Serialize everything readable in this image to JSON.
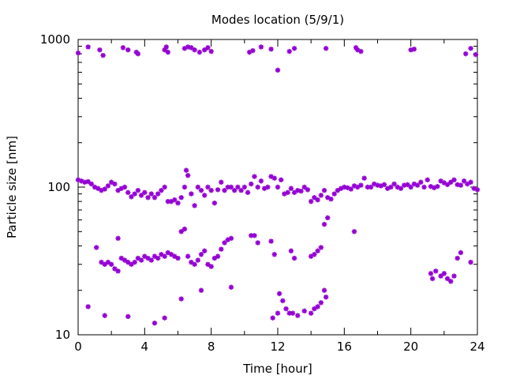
{
  "chart_data": {
    "type": "scatter",
    "title": "Modes location (5/9/1)",
    "xlabel": "Time [hour]",
    "ylabel": "Particle size [nm]",
    "xlim": [
      0,
      24
    ],
    "ylim": [
      10,
      1000
    ],
    "yscale": "log",
    "grid": false,
    "legend": "none",
    "x_ticks": [
      "0",
      "4",
      "8",
      "12",
      "16",
      "20",
      "24"
    ],
    "y_ticks": [
      "10",
      "100",
      "1000"
    ],
    "marker_color": "#9400d3",
    "marker": "star",
    "series": [
      {
        "values": [
          [
            0.0,
            810
          ],
          [
            0.6,
            890
          ],
          [
            1.3,
            850
          ],
          [
            1.5,
            780
          ],
          [
            2.7,
            880
          ],
          [
            3.0,
            850
          ],
          [
            3.5,
            820
          ],
          [
            3.6,
            800
          ],
          [
            5.2,
            850
          ],
          [
            5.3,
            890
          ],
          [
            5.4,
            820
          ],
          [
            6.4,
            870
          ],
          [
            6.6,
            890
          ],
          [
            6.8,
            880
          ],
          [
            7.0,
            850
          ],
          [
            7.3,
            820
          ],
          [
            7.6,
            850
          ],
          [
            7.8,
            880
          ],
          [
            8.0,
            830
          ],
          [
            10.3,
            820
          ],
          [
            10.5,
            840
          ],
          [
            11.0,
            890
          ],
          [
            11.6,
            860
          ],
          [
            12.0,
            620
          ],
          [
            12.7,
            830
          ],
          [
            13.0,
            870
          ],
          [
            14.9,
            870
          ],
          [
            16.7,
            880
          ],
          [
            16.8,
            850
          ],
          [
            17.0,
            830
          ],
          [
            20.0,
            850
          ],
          [
            20.2,
            860
          ],
          [
            23.3,
            800
          ],
          [
            23.6,
            870
          ],
          [
            23.9,
            790
          ],
          [
            0.0,
            112
          ],
          [
            0.2,
            110
          ],
          [
            0.4,
            108
          ],
          [
            0.6,
            109
          ],
          [
            0.8,
            105
          ],
          [
            1.0,
            100
          ],
          [
            1.2,
            98
          ],
          [
            1.4,
            95
          ],
          [
            1.6,
            97
          ],
          [
            1.8,
            102
          ],
          [
            2.0,
            108
          ],
          [
            2.2,
            105
          ],
          [
            2.4,
            95
          ],
          [
            2.6,
            98
          ],
          [
            2.8,
            100
          ],
          [
            3.0,
            92
          ],
          [
            3.2,
            86
          ],
          [
            3.4,
            90
          ],
          [
            3.6,
            95
          ],
          [
            3.8,
            88
          ],
          [
            4.0,
            92
          ],
          [
            4.2,
            85
          ],
          [
            4.4,
            90
          ],
          [
            4.6,
            85
          ],
          [
            4.8,
            90
          ],
          [
            5.0,
            95
          ],
          [
            5.2,
            100
          ],
          [
            5.4,
            80
          ],
          [
            5.6,
            80
          ],
          [
            5.8,
            82
          ],
          [
            6.0,
            78
          ],
          [
            6.2,
            85
          ],
          [
            6.4,
            100
          ],
          [
            6.5,
            130
          ],
          [
            6.6,
            120
          ],
          [
            6.8,
            90
          ],
          [
            7.0,
            75
          ],
          [
            7.2,
            100
          ],
          [
            7.4,
            95
          ],
          [
            7.6,
            88
          ],
          [
            7.8,
            100
          ],
          [
            8.0,
            95
          ],
          [
            8.2,
            78
          ],
          [
            8.4,
            96
          ],
          [
            8.6,
            108
          ],
          [
            8.8,
            95
          ],
          [
            9.0,
            100
          ],
          [
            9.2,
            100
          ],
          [
            9.4,
            95
          ],
          [
            9.6,
            100
          ],
          [
            9.8,
            95
          ],
          [
            10.0,
            100
          ],
          [
            10.2,
            92
          ],
          [
            10.4,
            105
          ],
          [
            10.6,
            118
          ],
          [
            10.8,
            100
          ],
          [
            11.0,
            110
          ],
          [
            11.2,
            98
          ],
          [
            11.4,
            100
          ],
          [
            11.6,
            118
          ],
          [
            11.8,
            115
          ],
          [
            12.0,
            100
          ],
          [
            12.2,
            112
          ],
          [
            12.4,
            90
          ],
          [
            12.6,
            92
          ],
          [
            12.8,
            98
          ],
          [
            13.0,
            92
          ],
          [
            13.2,
            95
          ],
          [
            13.4,
            94
          ],
          [
            13.6,
            100
          ],
          [
            13.8,
            96
          ],
          [
            14.0,
            80
          ],
          [
            14.2,
            85
          ],
          [
            14.4,
            82
          ],
          [
            14.6,
            88
          ],
          [
            14.8,
            95
          ],
          [
            15.0,
            85
          ],
          [
            15.2,
            83
          ],
          [
            15.4,
            90
          ],
          [
            15.6,
            95
          ],
          [
            15.8,
            98
          ],
          [
            16.0,
            100
          ],
          [
            16.2,
            99
          ],
          [
            16.4,
            97
          ],
          [
            16.6,
            102
          ],
          [
            16.8,
            100
          ],
          [
            17.0,
            103
          ],
          [
            17.2,
            115
          ],
          [
            17.4,
            100
          ],
          [
            17.6,
            100
          ],
          [
            17.8,
            105
          ],
          [
            18.0,
            103
          ],
          [
            18.2,
            102
          ],
          [
            18.4,
            104
          ],
          [
            18.6,
            98
          ],
          [
            18.8,
            100
          ],
          [
            19.0,
            105
          ],
          [
            19.2,
            100
          ],
          [
            19.4,
            98
          ],
          [
            19.6,
            103
          ],
          [
            19.8,
            104
          ],
          [
            20.0,
            100
          ],
          [
            20.2,
            105
          ],
          [
            20.4,
            103
          ],
          [
            20.6,
            108
          ],
          [
            20.8,
            100
          ],
          [
            21.0,
            112
          ],
          [
            21.2,
            101
          ],
          [
            21.4,
            99
          ],
          [
            21.6,
            101
          ],
          [
            21.8,
            110
          ],
          [
            22.0,
            107
          ],
          [
            22.2,
            104
          ],
          [
            22.4,
            108
          ],
          [
            22.6,
            112
          ],
          [
            22.8,
            104
          ],
          [
            23.0,
            103
          ],
          [
            23.2,
            110
          ],
          [
            23.4,
            105
          ],
          [
            23.6,
            108
          ],
          [
            23.8,
            98
          ],
          [
            24.0,
            96
          ],
          [
            1.1,
            39
          ],
          [
            1.4,
            31
          ],
          [
            1.6,
            30
          ],
          [
            1.8,
            31
          ],
          [
            2.0,
            30
          ],
          [
            2.2,
            28
          ],
          [
            2.4,
            27
          ],
          [
            2.6,
            33
          ],
          [
            2.8,
            32
          ],
          [
            3.0,
            31
          ],
          [
            3.2,
            30
          ],
          [
            3.4,
            31
          ],
          [
            3.6,
            33
          ],
          [
            3.8,
            32
          ],
          [
            4.0,
            34
          ],
          [
            4.2,
            33
          ],
          [
            4.4,
            32
          ],
          [
            4.6,
            34
          ],
          [
            4.8,
            33
          ],
          [
            5.0,
            35
          ],
          [
            5.2,
            34
          ],
          [
            5.4,
            36
          ],
          [
            5.6,
            35
          ],
          [
            5.8,
            34
          ],
          [
            6.0,
            33
          ],
          [
            6.2,
            50
          ],
          [
            6.4,
            52
          ],
          [
            6.6,
            34
          ],
          [
            6.8,
            31
          ],
          [
            7.0,
            30
          ],
          [
            7.2,
            32
          ],
          [
            7.4,
            35
          ],
          [
            7.6,
            37
          ],
          [
            7.8,
            30
          ],
          [
            8.0,
            29
          ],
          [
            8.2,
            33
          ],
          [
            8.4,
            34
          ],
          [
            8.6,
            38
          ],
          [
            8.8,
            42
          ],
          [
            9.0,
            44
          ],
          [
            9.2,
            45
          ],
          [
            10.4,
            47
          ],
          [
            10.6,
            47
          ],
          [
            10.8,
            42
          ],
          [
            11.6,
            43
          ],
          [
            11.8,
            35
          ],
          [
            12.8,
            37
          ],
          [
            13.0,
            33
          ],
          [
            14.0,
            34
          ],
          [
            14.2,
            35
          ],
          [
            14.4,
            37
          ],
          [
            14.6,
            39
          ],
          [
            14.8,
            56
          ],
          [
            15.0,
            62
          ],
          [
            16.6,
            50
          ],
          [
            2.4,
            45
          ],
          [
            21.2,
            26
          ],
          [
            21.3,
            24
          ],
          [
            21.5,
            27
          ],
          [
            21.8,
            25
          ],
          [
            22.0,
            26
          ],
          [
            22.2,
            24
          ],
          [
            22.4,
            23
          ],
          [
            22.6,
            25
          ],
          [
            22.8,
            33
          ],
          [
            23.0,
            36
          ],
          [
            23.6,
            31
          ],
          [
            0.6,
            15.5
          ],
          [
            1.6,
            13.5
          ],
          [
            3.0,
            13.3
          ],
          [
            4.6,
            12
          ],
          [
            5.2,
            13
          ],
          [
            6.2,
            17.5
          ],
          [
            7.4,
            20
          ],
          [
            9.2,
            21
          ],
          [
            11.7,
            13
          ],
          [
            12.0,
            14
          ],
          [
            12.1,
            19
          ],
          [
            12.3,
            17
          ],
          [
            12.5,
            15
          ],
          [
            12.7,
            14
          ],
          [
            12.9,
            14
          ],
          [
            13.2,
            13.5
          ],
          [
            13.6,
            14.5
          ],
          [
            14.0,
            14
          ],
          [
            14.2,
            15
          ],
          [
            14.4,
            15.5
          ],
          [
            14.6,
            16.5
          ],
          [
            14.8,
            20
          ],
          [
            14.9,
            18
          ]
        ]
      }
    ]
  }
}
